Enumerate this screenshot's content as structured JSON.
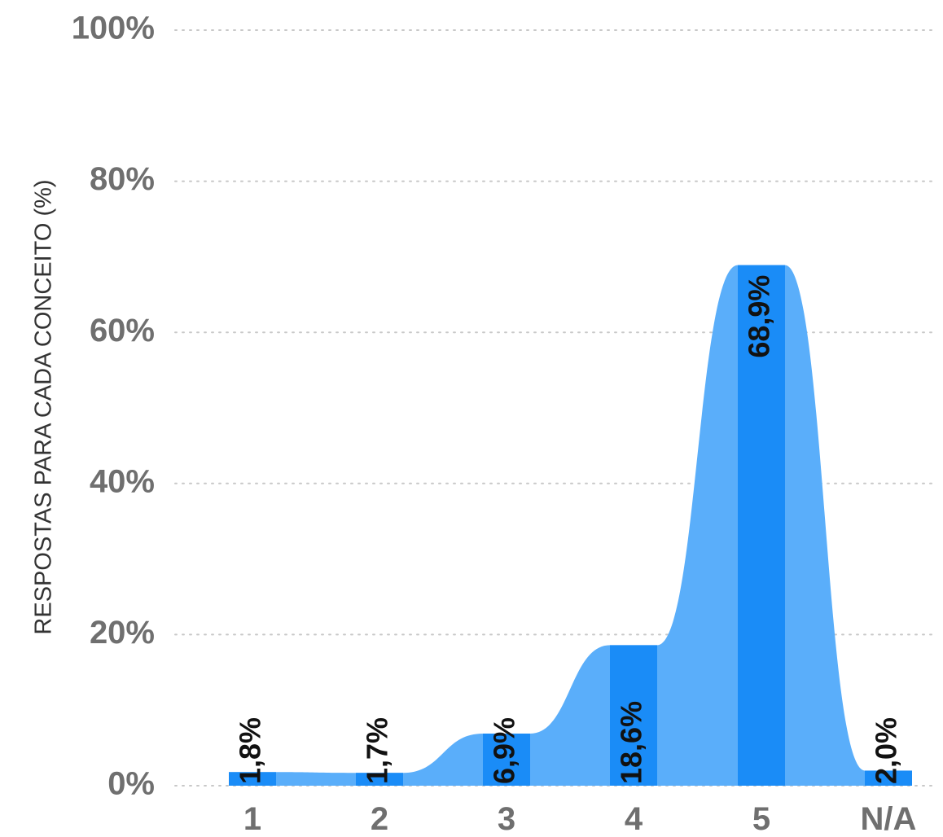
{
  "chart_data": {
    "type": "bar",
    "categories": [
      "1",
      "2",
      "3",
      "4",
      "5",
      "N/A"
    ],
    "values": [
      1.8,
      1.7,
      6.9,
      18.6,
      68.9,
      2.0
    ],
    "value_labels": [
      "1,8%",
      "1,7%",
      "6,9%",
      "18,6%",
      "68,9%",
      "2,0%"
    ],
    "title": "",
    "xlabel": "",
    "ylabel": "RESPOSTAS PARA CADA CONCEITO (%)",
    "ylim": [
      0,
      100
    ],
    "yticks": [
      0,
      20,
      40,
      60,
      80,
      100
    ],
    "ytick_labels": [
      "0%",
      "20%",
      "40%",
      "60%",
      "80%",
      "100%"
    ],
    "grid": true,
    "legend": "none",
    "colors": {
      "bar": "#1a8cf7",
      "area": "#5aaefa",
      "grid": "#c8c8c8",
      "tick_text": "#6f6f6f",
      "value_text": "#111111",
      "axis_title": "#333333"
    }
  }
}
